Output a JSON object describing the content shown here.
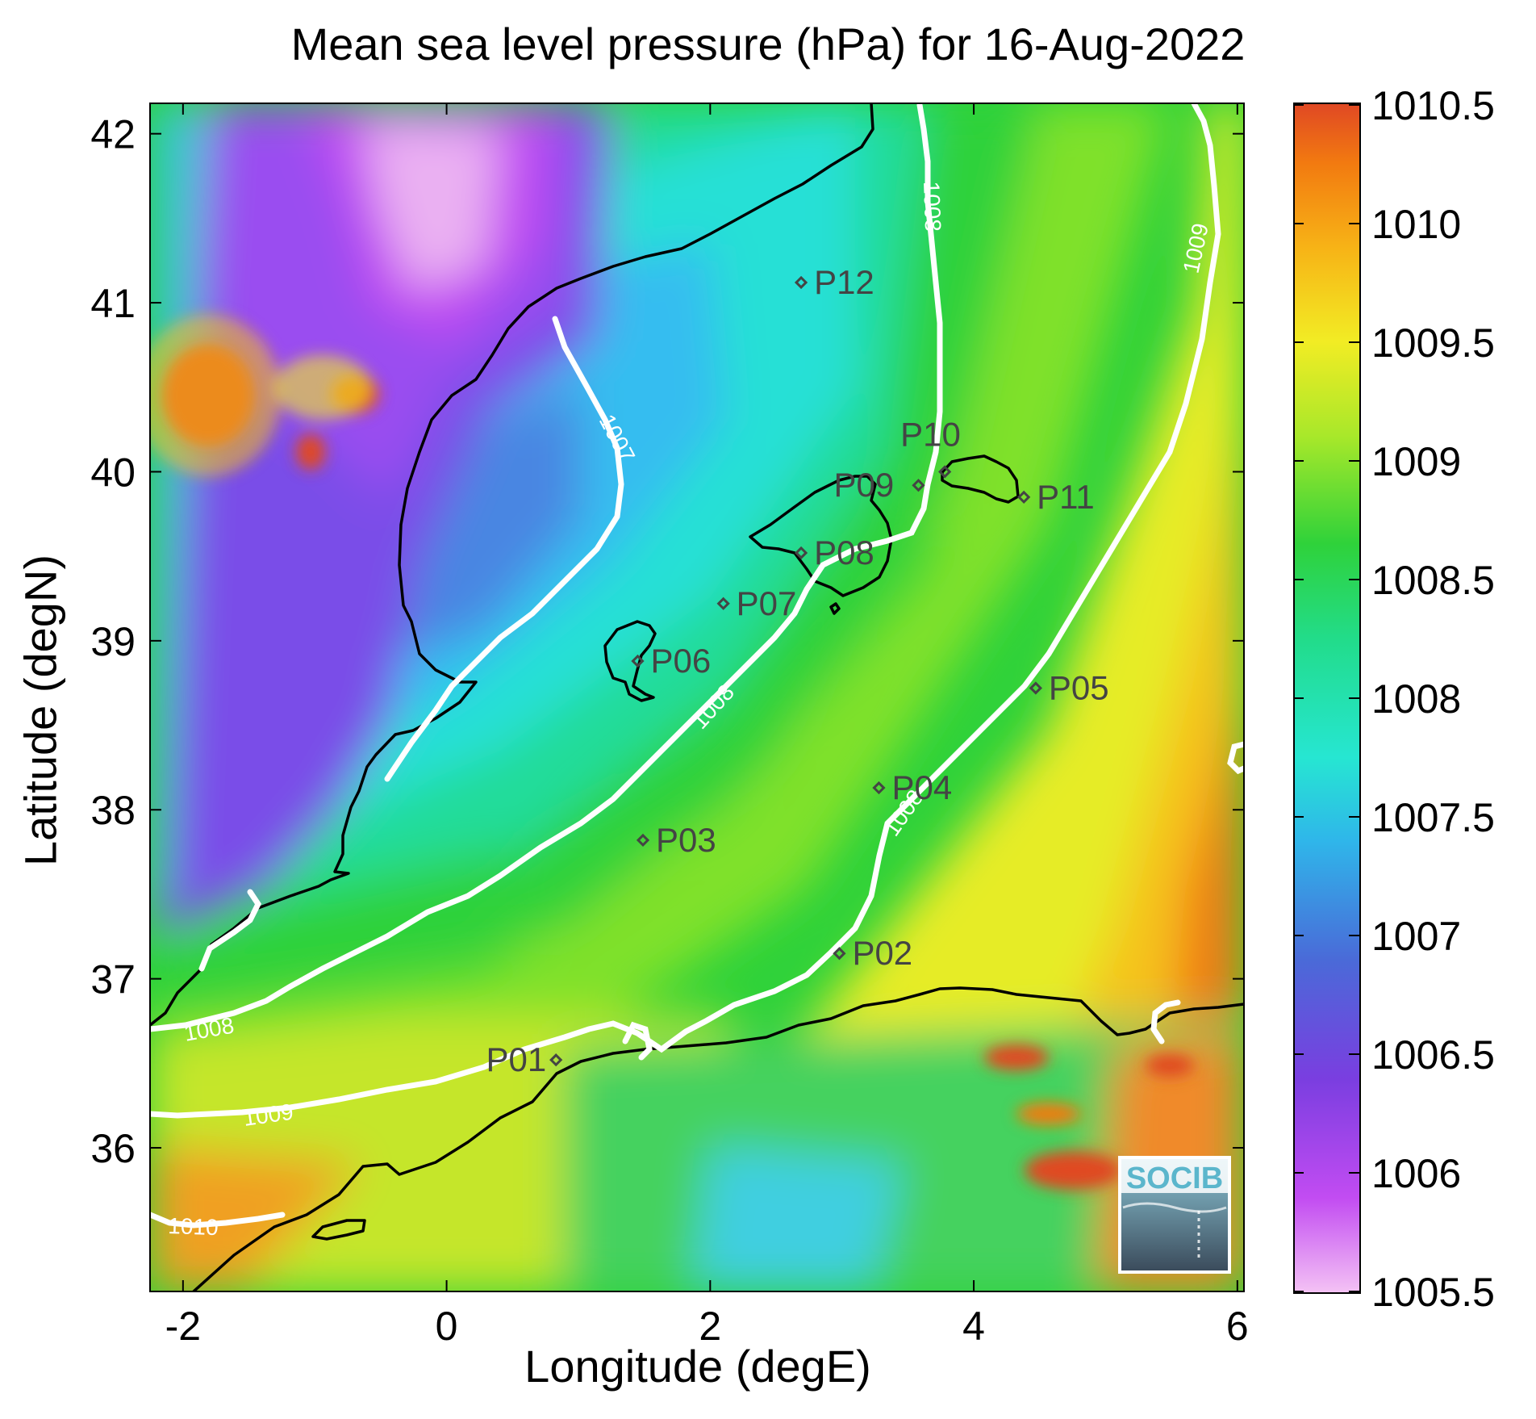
{
  "title": "Mean sea level pressure (hPa) for 16-Aug-2022",
  "xlabel": "Longitude (degE)",
  "ylabel": "Latitude (degN)",
  "logo_text": "SOCIB",
  "x_ticks": [
    "-2",
    "0",
    "2",
    "4",
    "6"
  ],
  "y_ticks": [
    "42",
    "41",
    "40",
    "39",
    "38",
    "37",
    "36"
  ],
  "colorbar_ticks": [
    "1010.5",
    "1010",
    "1009.5",
    "1009",
    "1008.5",
    "1008",
    "1007.5",
    "1007",
    "1006.5",
    "1006",
    "1005.5"
  ],
  "contour_labels": [
    "1007",
    "1008",
    "1008",
    "1008",
    "1009",
    "1009",
    "1010",
    "1008"
  ],
  "points": [
    {
      "label": "P01",
      "lon": 0.83,
      "lat": 36.52
    },
    {
      "label": "P02",
      "lon": 2.98,
      "lat": 37.15
    },
    {
      "label": "P03",
      "lon": 1.49,
      "lat": 37.82
    },
    {
      "label": "P04",
      "lon": 3.28,
      "lat": 38.13
    },
    {
      "label": "P05",
      "lon": 4.47,
      "lat": 38.72
    },
    {
      "label": "P06",
      "lon": 1.45,
      "lat": 38.88
    },
    {
      "label": "P07",
      "lon": 2.1,
      "lat": 39.22
    },
    {
      "label": "P08",
      "lon": 2.69,
      "lat": 39.52
    },
    {
      "label": "P09",
      "lon": 3.58,
      "lat": 39.92
    },
    {
      "label": "P10",
      "lon": 3.78,
      "lat": 40.0
    },
    {
      "label": "P11",
      "lon": 4.38,
      "lat": 39.85
    },
    {
      "label": "P12",
      "lon": 2.69,
      "lat": 41.12
    }
  ],
  "colors": {
    "contour": "#ffffff",
    "coast": "#000000",
    "marker": "#444444",
    "colormap": [
      "#f4c2f4",
      "#c24cf2",
      "#7a3ee0",
      "#4a6ad8",
      "#2fb6ea",
      "#26e6d2",
      "#22dc8a",
      "#2fd23a",
      "#a8e82a",
      "#f2ec24",
      "#f7b216",
      "#f27a10",
      "#e04824"
    ]
  }
}
